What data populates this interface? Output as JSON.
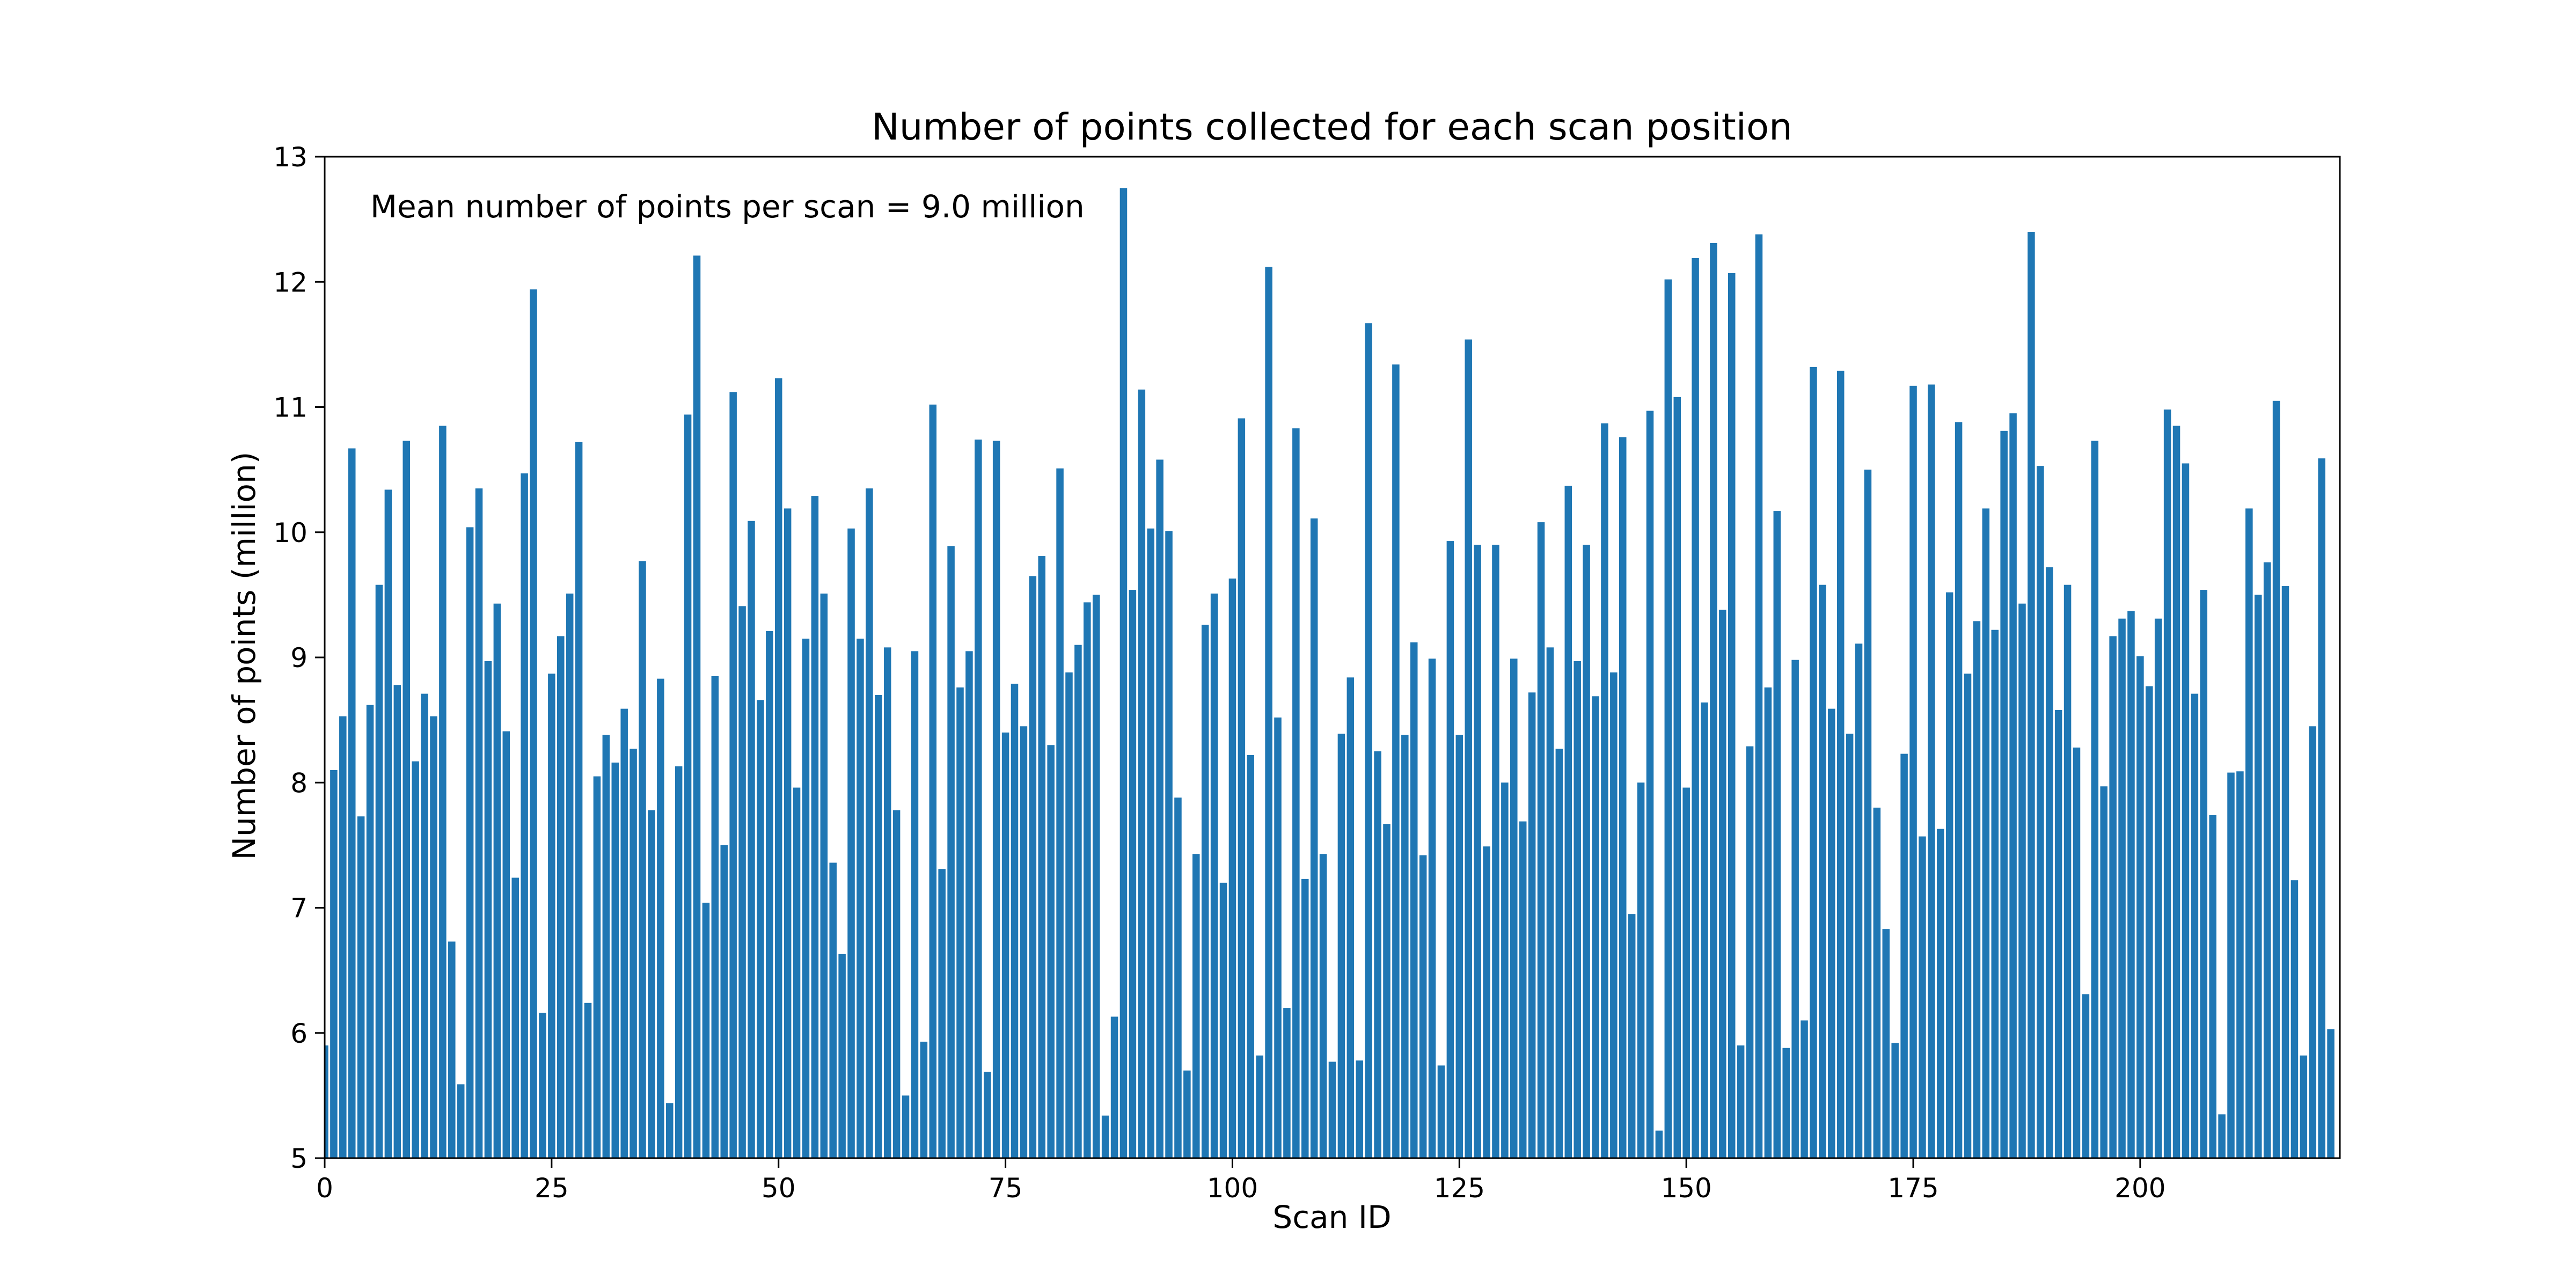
{
  "chart_data": {
    "type": "bar",
    "title": "Number of points collected for each scan position",
    "xlabel": "Scan ID",
    "ylabel": "Number of points (million)",
    "annotation": "Mean number of points per scan = 9.0 million",
    "xlim": [
      0,
      222
    ],
    "ylim": [
      5,
      13
    ],
    "x_ticks": [
      0,
      25,
      50,
      75,
      100,
      125,
      150,
      175,
      200
    ],
    "y_ticks": [
      5,
      6,
      7,
      8,
      9,
      10,
      11,
      12,
      13
    ],
    "grid": false,
    "bar_color": "#1f77b4",
    "x": [
      0,
      1,
      2,
      3,
      4,
      5,
      6,
      7,
      8,
      9,
      10,
      11,
      12,
      13,
      14,
      15,
      16,
      17,
      18,
      19,
      20,
      21,
      22,
      23,
      24,
      25,
      26,
      27,
      28,
      29,
      30,
      31,
      32,
      33,
      34,
      35,
      36,
      37,
      38,
      39,
      40,
      41,
      42,
      43,
      44,
      45,
      46,
      47,
      48,
      49,
      50,
      51,
      52,
      53,
      54,
      55,
      56,
      57,
      58,
      59,
      60,
      61,
      62,
      63,
      64,
      65,
      66,
      67,
      68,
      69,
      70,
      71,
      72,
      73,
      74,
      75,
      76,
      77,
      78,
      79,
      80,
      81,
      82,
      83,
      84,
      85,
      86,
      87,
      88,
      89,
      90,
      91,
      92,
      93,
      94,
      95,
      96,
      97,
      98,
      99,
      100,
      101,
      102,
      103,
      104,
      105,
      106,
      107,
      108,
      109,
      110,
      111,
      112,
      113,
      114,
      115,
      116,
      117,
      118,
      119,
      120,
      121,
      122,
      123,
      124,
      125,
      126,
      127,
      128,
      129,
      130,
      131,
      132,
      133,
      134,
      135,
      136,
      137,
      138,
      139,
      140,
      141,
      142,
      143,
      144,
      145,
      146,
      147,
      148,
      149,
      150,
      151,
      152,
      153,
      154,
      155,
      156,
      157,
      158,
      159,
      160,
      161,
      162,
      163,
      164,
      165,
      166,
      167,
      168,
      169,
      170,
      171,
      172,
      173,
      174,
      175,
      176,
      177,
      178,
      179,
      180,
      181,
      182,
      183,
      184,
      185,
      186,
      187,
      188,
      189,
      190,
      191,
      192,
      193,
      194,
      195,
      196,
      197,
      198,
      199,
      200,
      201,
      202,
      203,
      204,
      205,
      206,
      207,
      208,
      209,
      210,
      211,
      212,
      213,
      214,
      215,
      216,
      217,
      218,
      219,
      220,
      221
    ],
    "values": [
      5.9,
      8.1,
      8.53,
      10.67,
      7.73,
      8.62,
      9.58,
      10.34,
      8.78,
      10.73,
      8.17,
      8.71,
      8.53,
      10.85,
      6.73,
      5.59,
      10.04,
      10.35,
      8.97,
      9.43,
      8.41,
      7.24,
      10.47,
      11.94,
      6.16,
      8.87,
      9.17,
      9.51,
      10.72,
      6.24,
      8.05,
      8.38,
      8.16,
      8.59,
      8.27,
      9.77,
      7.78,
      8.83,
      5.44,
      8.13,
      10.94,
      12.21,
      7.04,
      8.85,
      7.5,
      11.12,
      9.41,
      10.09,
      8.66,
      9.21,
      11.23,
      10.19,
      7.96,
      9.15,
      10.29,
      9.51,
      7.36,
      6.63,
      10.03,
      9.15,
      10.35,
      8.7,
      9.08,
      7.78,
      5.5,
      9.05,
      5.93,
      11.02,
      7.31,
      9.89,
      8.76,
      9.05,
      10.74,
      5.69,
      10.73,
      8.4,
      8.79,
      8.45,
      9.65,
      9.81,
      8.3,
      10.51,
      8.88,
      9.1,
      9.44,
      9.5,
      5.34,
      6.13,
      12.75,
      9.54,
      11.14,
      10.03,
      10.58,
      10.01,
      7.88,
      5.7,
      7.43,
      9.26,
      9.51,
      7.2,
      9.63,
      10.91,
      8.22,
      5.82,
      12.12,
      8.52,
      6.2,
      10.83,
      7.23,
      10.11,
      7.43,
      5.77,
      8.39,
      8.84,
      5.78,
      11.67,
      8.25,
      7.67,
      11.34,
      8.38,
      9.12,
      7.42,
      8.99,
      5.74,
      9.93,
      8.38,
      11.54,
      9.9,
      7.49,
      9.9,
      8.0,
      8.99,
      7.69,
      8.72,
      10.08,
      9.08,
      8.27,
      10.37,
      8.97,
      9.9,
      8.69,
      10.87,
      8.88,
      10.76,
      6.95,
      8.0,
      10.97,
      5.22,
      12.02,
      11.08,
      7.96,
      12.19,
      8.64,
      12.31,
      9.38,
      12.07,
      5.9,
      8.29,
      12.38,
      8.76,
      10.17,
      5.88,
      8.98,
      6.1,
      11.32,
      9.58,
      8.59,
      11.29,
      8.39,
      9.11,
      10.5,
      7.8,
      6.83,
      5.92,
      8.23,
      11.17,
      7.57,
      11.18,
      7.63,
      9.52,
      10.88,
      8.87,
      9.29,
      10.19,
      9.22,
      10.81,
      10.95,
      9.43,
      12.4,
      10.53,
      9.72,
      8.58,
      9.58,
      8.28,
      6.31,
      10.73,
      7.97,
      9.17,
      9.31,
      9.37,
      9.01,
      8.77,
      9.31,
      10.98,
      10.85,
      10.55,
      8.71,
      9.54,
      7.74,
      5.35,
      8.08,
      8.09,
      10.19,
      9.5,
      9.76,
      11.05,
      9.57,
      7.22,
      5.82,
      8.45,
      10.59,
      6.03
    ]
  }
}
